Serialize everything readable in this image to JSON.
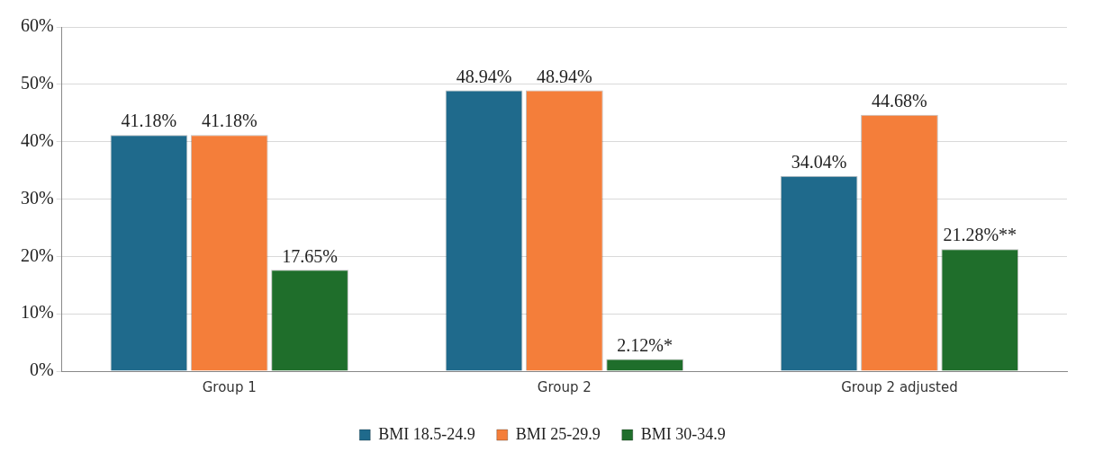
{
  "chart_data": {
    "type": "bar",
    "categories": [
      "Group 1",
      "Group 2",
      "Group 2 adjusted"
    ],
    "series": [
      {
        "name": "BMI 18.5-24.9",
        "color": "#1f6a8c",
        "values": [
          41.18,
          48.94,
          34.04
        ],
        "value_labels": [
          "41.18%",
          "48.94%",
          "34.04%"
        ]
      },
      {
        "name": "BMI 25-29.9",
        "color": "#f47e3a",
        "values": [
          41.18,
          48.94,
          44.68
        ],
        "value_labels": [
          "41.18%",
          "48.94%",
          "44.68%"
        ]
      },
      {
        "name": "BMI 30-34.9",
        "color": "#1f6e2b",
        "values": [
          17.65,
          2.12,
          21.28
        ],
        "value_labels": [
          "17.65%",
          "2.12%*",
          "21.28%**"
        ]
      }
    ],
    "ylim": [
      0,
      60
    ],
    "yticks": [
      {
        "value": 0,
        "label": "0%"
      },
      {
        "value": 10,
        "label": "10%"
      },
      {
        "value": 20,
        "label": "20%"
      },
      {
        "value": 30,
        "label": "30%"
      },
      {
        "value": 40,
        "label": "40%"
      },
      {
        "value": 50,
        "label": "50%"
      },
      {
        "value": 60,
        "label": "60%"
      }
    ],
    "grid": "y",
    "legend": "bottom"
  }
}
